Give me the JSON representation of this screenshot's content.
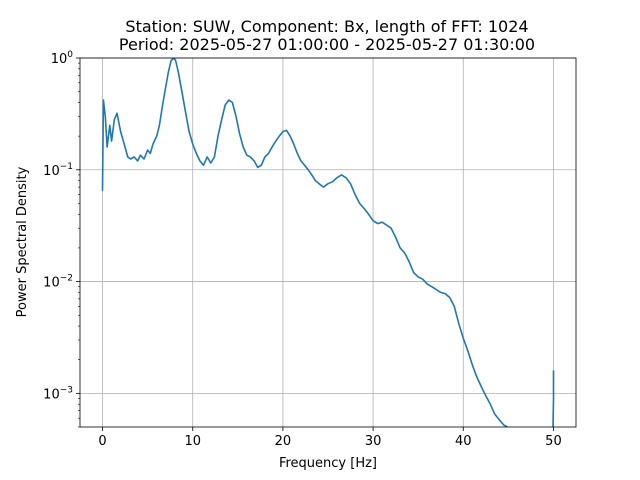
{
  "chart_data": {
    "type": "line",
    "title_line1": "Station: SUW, Component: Bx, length of FFT: 1024",
    "title_line2": "Period: 2025-05-27 01:00:00 - 2025-05-27 01:30:00",
    "xlabel": "Frequency [Hz]",
    "ylabel": "Power Spectral Density",
    "xlim": [
      -2.5,
      52.5
    ],
    "ylim": [
      0.0005,
      1.0
    ],
    "yscale": "log",
    "grid": true,
    "x_ticks": [
      0,
      10,
      20,
      30,
      40,
      50
    ],
    "x_tick_labels": [
      "0",
      "10",
      "20",
      "30",
      "40",
      "50"
    ],
    "y_ticks": [
      {
        "value": 1.0,
        "base": "10",
        "exp": "0"
      },
      {
        "value": 0.1,
        "base": "10",
        "exp": "−1"
      },
      {
        "value": 0.01,
        "base": "10",
        "exp": "−2"
      },
      {
        "value": 0.001,
        "base": "10",
        "exp": "−3"
      }
    ],
    "line_color": "#1f77b4",
    "series": [
      {
        "x": [
          0.0,
          0.1,
          0.3,
          0.5,
          0.8,
          1.0,
          1.3,
          1.6,
          2.0,
          2.4,
          2.8,
          3.1,
          3.5,
          3.9,
          4.2,
          4.6,
          5.0,
          5.3,
          5.6,
          6.0,
          6.3,
          6.7,
          7.0,
          7.3,
          7.6,
          7.9,
          8.1,
          8.4,
          8.8,
          9.2,
          9.6,
          10.0,
          10.4,
          10.8,
          11.2,
          11.6,
          12.0,
          12.4,
          12.8,
          13.2,
          13.6,
          14.0,
          14.4,
          14.8,
          15.2,
          15.6,
          16.0,
          16.4,
          16.8,
          17.2,
          17.6,
          18.0,
          18.4,
          18.8,
          19.2,
          19.6,
          20.0,
          20.4,
          20.8,
          21.2,
          21.6,
          22.0,
          22.4,
          22.8,
          23.2,
          23.6,
          24.0,
          24.5,
          25.0,
          25.5,
          26.0,
          26.5,
          27.0,
          27.5,
          28.0,
          28.5,
          29.0,
          29.5,
          30.0,
          30.5,
          31.0,
          31.5,
          32.0,
          32.5,
          33.0,
          33.5,
          34.0,
          34.5,
          35.0,
          35.5,
          36.0,
          36.5,
          37.0,
          37.5,
          38.0,
          38.5,
          39.0,
          39.5,
          40.0,
          40.5,
          41.0,
          41.5,
          42.0,
          42.5,
          43.0,
          43.5,
          44.0,
          44.5,
          44.9
        ],
        "y": [
          0.065,
          0.42,
          0.3,
          0.16,
          0.25,
          0.18,
          0.28,
          0.32,
          0.22,
          0.17,
          0.13,
          0.125,
          0.13,
          0.12,
          0.135,
          0.125,
          0.15,
          0.14,
          0.17,
          0.2,
          0.25,
          0.4,
          0.55,
          0.75,
          0.95,
          1.0,
          0.95,
          0.75,
          0.5,
          0.33,
          0.22,
          0.17,
          0.14,
          0.12,
          0.11,
          0.13,
          0.115,
          0.13,
          0.2,
          0.28,
          0.38,
          0.42,
          0.4,
          0.3,
          0.21,
          0.16,
          0.135,
          0.13,
          0.12,
          0.105,
          0.11,
          0.13,
          0.14,
          0.16,
          0.18,
          0.2,
          0.22,
          0.225,
          0.2,
          0.17,
          0.14,
          0.12,
          0.11,
          0.1,
          0.09,
          0.08,
          0.075,
          0.07,
          0.075,
          0.078,
          0.085,
          0.09,
          0.085,
          0.075,
          0.06,
          0.05,
          0.045,
          0.04,
          0.035,
          0.033,
          0.034,
          0.032,
          0.03,
          0.025,
          0.02,
          0.018,
          0.015,
          0.012,
          0.011,
          0.0105,
          0.0095,
          0.009,
          0.0085,
          0.008,
          0.0078,
          0.0072,
          0.006,
          0.0042,
          0.0031,
          0.0024,
          0.0018,
          0.0014,
          0.00115,
          0.00095,
          0.0008,
          0.00065,
          0.00058,
          0.00052,
          0.0005
        ]
      },
      {
        "x": [
          49.95,
          50.0,
          50.0
        ],
        "y": [
          0.0005,
          0.0009,
          0.0016
        ]
      }
    ]
  }
}
